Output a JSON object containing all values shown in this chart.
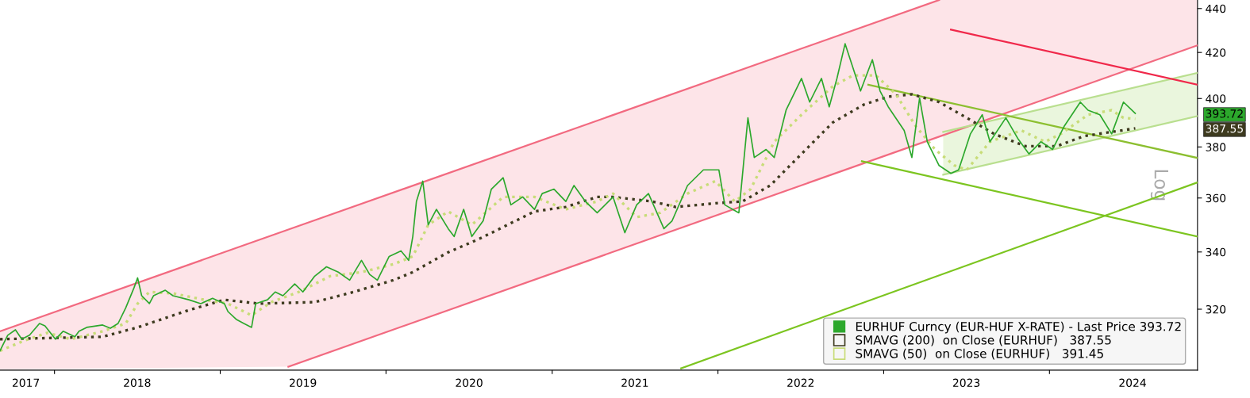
{
  "chart_data": {
    "type": "line",
    "ylabel": "Log",
    "log": "y",
    "ylim": [
      300,
      444
    ],
    "yticks": [
      320,
      340,
      360,
      380,
      400,
      420,
      440,
      {
        "value": 393.72,
        "label": "393.72"
      },
      {
        "value": 387.55,
        "label": "387.55"
      }
    ],
    "xlim": [
      "2017-09-03",
      "2024-11-22"
    ],
    "xticks": [
      {
        "value": "2017-10-30",
        "label": "2017"
      },
      {
        "value": "2018-01-01",
        "label": null
      },
      {
        "value": "2018-07-02",
        "label": "2018"
      },
      {
        "value": "2019-01-01",
        "label": null
      },
      {
        "value": "2019-07-02",
        "label": "2019"
      },
      {
        "value": "2020-01-01",
        "label": null
      },
      {
        "value": "2020-07-02",
        "label": "2020"
      },
      {
        "value": "2021-01-01",
        "label": null
      },
      {
        "value": "2021-07-02",
        "label": "2021"
      },
      {
        "value": "2022-01-01",
        "label": null
      },
      {
        "value": "2022-07-02",
        "label": "2022"
      },
      {
        "value": "2023-01-01",
        "label": null
      },
      {
        "value": "2023-07-02",
        "label": "2023"
      },
      {
        "value": "2024-01-01",
        "label": null
      },
      {
        "value": "2024-07-02",
        "label": "2024"
      }
    ],
    "grid": false,
    "legend": "bottom right",
    "marker": "none",
    "series": [
      {
        "color": "#fde4e8",
        "x": [
          "2017-09-03",
          "2019-05-31",
          "2023-05-03",
          "2024-11-22"
        ],
        "values": [
          null,
          null,
          null,
          null
        ],
        "lower": [
          300.3,
          301.1,
          384.1,
          423.2
        ],
        "upper": [
          312.6,
          347.9,
          444,
          444
        ]
      },
      {
        "color": "#eaf6dd",
        "x": [
          "2023-05-12",
          "2024-11-22"
        ],
        "values": [
          null,
          null
        ],
        "lower": [
          369.0,
          392.6
        ],
        "upper": [
          386.1,
          411.0
        ]
      },
      {
        "color": "#f26a80",
        "x": [
          "2017-09-03",
          "2023-05-03"
        ],
        "values": [
          312.6,
          444
        ]
      },
      {
        "color": "#f26a80",
        "x": [
          "2019-05-31",
          "2024-11-22"
        ],
        "values": [
          301.1,
          423.2
        ]
      },
      {
        "color": "#b9df8f",
        "x": [
          "2023-05-12",
          "2024-11-22"
        ],
        "values": [
          386.1,
          411.0
        ]
      },
      {
        "color": "#b9df8f",
        "x": [
          "2023-05-12",
          "2024-11-22"
        ],
        "values": [
          369.0,
          392.6
        ]
      },
      {
        "color": "#f0284a",
        "x": [
          "2023-05-29",
          "2024-11-22"
        ],
        "values": [
          430.3,
          405.9
        ]
      },
      {
        "color": "#8cbf30",
        "x": [
          "2022-11-28",
          "2024-11-22"
        ],
        "values": [
          405.9,
          375.6
        ]
      },
      {
        "color": "#7cc520",
        "x": [
          "2022-11-14",
          "2024-11-22"
        ],
        "values": [
          374.3,
          345.6
        ]
      },
      {
        "color": "#7cc520",
        "x": [
          "2021-10-12",
          "2024-11-22"
        ],
        "values": [
          300.6,
          366.0
        ]
      },
      {
        "name": "SMAVG (200)  on Close (EURHUF)   387.55",
        "color": "#3d3a1e",
        "line_style": "dotted",
        "x": [
          "2017-09-03",
          "2018-04-17",
          "2018-07-03",
          "2018-10-24",
          "2019-01-10",
          "2019-03-28",
          "2019-07-28",
          "2019-10-22",
          "2020-01-17",
          "2020-02-29",
          "2020-05-17",
          "2020-07-25",
          "2020-11-23",
          "2021-01-31",
          "2021-04-10",
          "2021-05-15",
          "2021-08-09",
          "2021-09-30",
          "2022-01-03",
          "2022-02-24",
          "2022-04-26",
          "2022-07-04",
          "2022-09-11",
          "2022-11-19",
          "2023-01-11",
          "2023-03-04",
          "2023-05-03",
          "2023-07-03",
          "2023-09-01",
          "2023-11-09",
          "2024-01-17",
          "2024-03-17",
          "2024-05-17",
          "2024-07-08"
        ],
        "values": [
          310.0,
          310.8,
          313.9,
          319.7,
          323.2,
          321.9,
          322.4,
          325.9,
          330.0,
          332.8,
          339.9,
          344.8,
          354.9,
          356.6,
          360.4,
          360.4,
          358.7,
          356.6,
          358.1,
          358.7,
          364.8,
          377.2,
          390.0,
          397.5,
          400.8,
          401.8,
          398.5,
          391.9,
          385.3,
          380.3,
          380.3,
          384.4,
          386.1,
          387.55
        ]
      },
      {
        "name": "SMAVG (50)  on Close (EURHUF)   391.45",
        "color": "#c8dc78",
        "line_style": "dotted",
        "x": [
          "2017-09-03",
          "2017-10-26",
          "2017-12-16",
          "2018-02-06",
          "2018-04-17",
          "2018-06-07",
          "2018-07-03",
          "2018-07-29",
          "2018-09-19",
          "2018-11-27",
          "2019-01-18",
          "2019-03-11",
          "2019-04-23",
          "2019-06-23",
          "2019-08-31",
          "2019-11-08",
          "2020-01-17",
          "2020-02-29",
          "2020-04-03",
          "2020-05-17",
          "2020-07-08",
          "2020-09-15",
          "2020-11-23",
          "2021-01-31",
          "2021-04-10",
          "2021-05-15",
          "2021-07-06",
          "2021-08-27",
          "2021-10-26",
          "2021-12-26",
          "2022-02-07",
          "2022-03-14",
          "2022-05-05",
          "2022-07-04",
          "2022-09-11",
          "2022-10-25",
          "2022-12-15",
          "2023-01-28",
          "2023-03-12",
          "2023-04-24",
          "2023-06-06",
          "2023-07-03",
          "2023-08-23",
          "2023-10-31",
          "2023-12-22",
          "2024-01-26",
          "2024-03-26",
          "2024-05-17",
          "2024-06-12",
          "2024-07-08"
        ],
        "values": [
          306.2,
          309.5,
          312.1,
          310.0,
          312.6,
          315.2,
          321.9,
          325.9,
          325.4,
          323.2,
          321.9,
          317.9,
          322.4,
          325.9,
          331.4,
          332.8,
          335.6,
          338.4,
          349.9,
          354.9,
          349.9,
          360.4,
          360.4,
          355.7,
          358.7,
          361.7,
          352.8,
          354.4,
          361.7,
          366.5,
          358.7,
          363.4,
          382.1,
          393.2,
          405.2,
          409.9,
          409.9,
          401.8,
          388.6,
          379.0,
          372.6,
          370.9,
          382.1,
          386.7,
          382.1,
          385.3,
          393.2,
          395.1,
          391.9,
          391.45
        ]
      },
      {
        "name": "EURHUF Curncy (EUR-HUF X-RATE) - Last Price 393.72",
        "color": "#2ca82c",
        "line_style": "solid",
        "x": [
          "2017-09-03",
          "2017-09-20",
          "2017-10-07",
          "2017-10-21",
          "2017-11-07",
          "2017-11-29",
          "2017-12-11",
          "2018-01-03",
          "2018-01-20",
          "2018-02-15",
          "2018-02-24",
          "2018-03-13",
          "2018-04-17",
          "2018-05-04",
          "2018-05-21",
          "2018-06-07",
          "2018-06-25",
          "2018-07-03",
          "2018-07-12",
          "2018-07-29",
          "2018-08-07",
          "2018-09-02",
          "2018-09-19",
          "2018-10-24",
          "2018-11-19",
          "2018-12-15",
          "2019-01-10",
          "2019-01-18",
          "2019-02-05",
          "2019-02-22",
          "2019-03-11",
          "2019-03-20",
          "2019-04-15",
          "2019-05-02",
          "2019-05-19",
          "2019-06-14",
          "2019-07-02",
          "2019-07-28",
          "2019-08-23",
          "2019-09-18",
          "2019-10-13",
          "2019-11-08",
          "2019-11-26",
          "2019-12-13",
          "2020-01-08",
          "2020-02-03",
          "2020-02-20",
          "2020-02-29",
          "2020-03-08",
          "2020-03-22",
          "2020-04-03",
          "2020-04-21",
          "2020-05-17",
          "2020-05-30",
          "2020-06-20",
          "2020-07-08",
          "2020-08-02",
          "2020-08-20",
          "2020-09-15",
          "2020-10-02",
          "2020-10-28",
          "2020-11-23",
          "2020-12-10",
          "2021-01-05",
          "2021-01-31",
          "2021-02-18",
          "2021-03-15",
          "2021-04-10",
          "2021-05-15",
          "2021-06-10",
          "2021-07-06",
          "2021-08-01",
          "2021-09-04",
          "2021-09-22",
          "2021-10-26",
          "2021-11-30",
          "2022-01-03",
          "2022-01-16",
          "2022-02-16",
          "2022-03-08",
          "2022-03-22",
          "2022-04-17",
          "2022-05-05",
          "2022-05-31",
          "2022-07-04",
          "2022-07-22",
          "2022-08-17",
          "2022-09-03",
          "2022-09-20",
          "2022-10-08",
          "2022-10-25",
          "2022-11-11",
          "2022-12-07",
          "2022-12-24",
          "2023-01-11",
          "2023-02-15",
          "2023-03-04",
          "2023-03-21",
          "2023-04-07",
          "2023-05-03",
          "2023-05-29",
          "2023-06-15",
          "2023-07-11",
          "2023-08-06",
          "2023-08-23",
          "2023-09-27",
          "2023-10-23",
          "2023-11-17",
          "2023-12-13",
          "2024-01-08",
          "2024-02-03",
          "2024-03-09",
          "2024-03-26",
          "2024-04-21",
          "2024-05-17",
          "2024-06-12",
          "2024-07-08"
        ],
        "values": [
          306.2,
          311.3,
          313.1,
          310.0,
          311.3,
          315.2,
          314.4,
          310.0,
          312.6,
          310.8,
          312.6,
          313.9,
          314.7,
          313.6,
          315.2,
          320.5,
          327.3,
          330.8,
          324.6,
          321.9,
          324.6,
          326.5,
          324.6,
          323.2,
          321.9,
          323.7,
          321.9,
          319.2,
          316.6,
          315.2,
          313.9,
          321.9,
          323.2,
          325.9,
          324.6,
          328.7,
          325.9,
          331.4,
          334.7,
          332.8,
          330.0,
          337.0,
          332.0,
          330.0,
          338.4,
          340.4,
          337.0,
          345.6,
          358.7,
          366.5,
          349.9,
          355.7,
          348.5,
          345.6,
          355.7,
          345.6,
          351.4,
          363.4,
          367.8,
          357.4,
          360.4,
          355.7,
          361.7,
          363.4,
          358.7,
          364.8,
          358.7,
          354.4,
          360.4,
          347.0,
          357.4,
          361.7,
          348.5,
          351.4,
          364.8,
          370.9,
          370.9,
          357.4,
          354.4,
          391.9,
          375.8,
          379.0,
          375.8,
          395.1,
          408.6,
          398.5,
          408.6,
          396.5,
          408.6,
          423.9,
          413.4,
          403.2,
          416.8,
          403.2,
          396.5,
          386.7,
          375.8,
          400.2,
          382.1,
          372.6,
          369.5,
          370.9,
          385.3,
          393.2,
          382.1,
          391.9,
          383.5,
          377.2,
          382.1,
          379.0,
          388.6,
          398.5,
          395.1,
          393.2,
          385.3,
          398.5,
          393.72
        ]
      }
    ]
  }
}
